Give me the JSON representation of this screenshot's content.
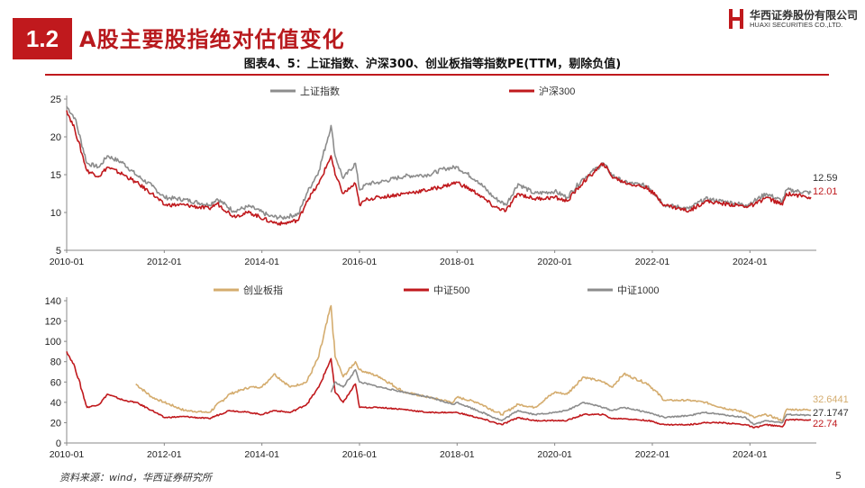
{
  "header": {
    "section_number": "1.2",
    "section_title": "A股主要股指绝对估值变化",
    "logo_cn": "华西证券股份有限公司",
    "logo_en": "HUAXI SECURITIES CO.,LTD."
  },
  "figure_title": "图表4、5：上证指数、沪深300、创业板指等指数PE(TTM，剔除负值)",
  "colors": {
    "red": "#c0191d",
    "grey": "#8c8c8c",
    "tan": "#d4ac6e"
  },
  "chart_data": [
    {
      "type": "line",
      "xlim": [
        "2010-01",
        "2025-04"
      ],
      "ylim": [
        5,
        25
      ],
      "yticks": [
        "5",
        "10",
        "15",
        "20",
        "25"
      ],
      "xticks": [
        "2010-01",
        "2012-01",
        "2014-01",
        "2016-01",
        "2018-01",
        "2020-01",
        "2022-01",
        "2024-01"
      ],
      "legend_position": "top",
      "end_labels": [
        "12.59",
        "12.01"
      ],
      "series": [
        {
          "name": "上证指数",
          "color": "#8c8c8c",
          "points": [
            [
              "2010-01",
              24.0
            ],
            [
              "2010-03",
              22.5
            ],
            [
              "2010-06",
              16.5
            ],
            [
              "2010-09",
              16.0
            ],
            [
              "2010-11",
              17.5
            ],
            [
              "2011-03",
              16.5
            ],
            [
              "2011-06",
              15.0
            ],
            [
              "2011-10",
              13.5
            ],
            [
              "2012-01",
              12.0
            ],
            [
              "2012-06",
              11.7
            ],
            [
              "2012-12",
              11.0
            ],
            [
              "2013-02",
              11.8
            ],
            [
              "2013-06",
              10.2
            ],
            [
              "2013-10",
              10.8
            ],
            [
              "2014-03",
              9.5
            ],
            [
              "2014-06",
              9.3
            ],
            [
              "2014-10",
              9.8
            ],
            [
              "2014-12",
              12.5
            ],
            [
              "2015-03",
              15.5
            ],
            [
              "2015-06",
              21.5
            ],
            [
              "2015-07",
              17.5
            ],
            [
              "2015-09",
              14.5
            ],
            [
              "2015-12",
              16.5
            ],
            [
              "2016-01",
              13.0
            ],
            [
              "2016-03",
              13.8
            ],
            [
              "2016-06",
              14.0
            ],
            [
              "2016-12",
              14.8
            ],
            [
              "2017-06",
              15.0
            ],
            [
              "2017-10",
              15.8
            ],
            [
              "2018-01",
              16.0
            ],
            [
              "2018-06",
              14.2
            ],
            [
              "2018-10",
              12.0
            ],
            [
              "2019-01",
              11.0
            ],
            [
              "2019-04",
              13.8
            ],
            [
              "2019-08",
              12.5
            ],
            [
              "2020-01",
              12.8
            ],
            [
              "2020-04",
              12.0
            ],
            [
              "2020-08",
              14.5
            ],
            [
              "2021-01",
              16.5
            ],
            [
              "2021-03",
              15.0
            ],
            [
              "2021-06",
              14.0
            ],
            [
              "2021-12",
              13.5
            ],
            [
              "2022-04",
              11.0
            ],
            [
              "2022-10",
              10.5
            ],
            [
              "2023-02",
              11.8
            ],
            [
              "2023-06",
              11.5
            ],
            [
              "2023-12",
              11.0
            ],
            [
              "2024-02",
              11.5
            ],
            [
              "2024-05",
              12.5
            ],
            [
              "2024-09",
              11.5
            ],
            [
              "2024-10",
              13.0
            ],
            [
              "2025-04",
              12.59
            ]
          ]
        },
        {
          "name": "沪深300",
          "color": "#c0191d",
          "points": [
            [
              "2010-01",
              23.5
            ],
            [
              "2010-03",
              21.0
            ],
            [
              "2010-06",
              15.5
            ],
            [
              "2010-09",
              14.8
            ],
            [
              "2010-11",
              16.0
            ],
            [
              "2011-03",
              15.0
            ],
            [
              "2011-06",
              14.0
            ],
            [
              "2011-10",
              12.5
            ],
            [
              "2012-01",
              11.0
            ],
            [
              "2012-06",
              11.0
            ],
            [
              "2012-12",
              10.5
            ],
            [
              "2013-02",
              11.2
            ],
            [
              "2013-06",
              9.5
            ],
            [
              "2013-10",
              10.0
            ],
            [
              "2014-03",
              8.8
            ],
            [
              "2014-06",
              8.5
            ],
            [
              "2014-10",
              9.0
            ],
            [
              "2014-12",
              11.5
            ],
            [
              "2015-03",
              13.8
            ],
            [
              "2015-06",
              17.5
            ],
            [
              "2015-07",
              15.0
            ],
            [
              "2015-09",
              12.5
            ],
            [
              "2015-12",
              13.8
            ],
            [
              "2016-01",
              11.0
            ],
            [
              "2016-03",
              11.8
            ],
            [
              "2016-06",
              12.0
            ],
            [
              "2016-12",
              12.5
            ],
            [
              "2017-06",
              13.0
            ],
            [
              "2017-10",
              13.5
            ],
            [
              "2018-01",
              14.0
            ],
            [
              "2018-06",
              12.5
            ],
            [
              "2018-10",
              10.8
            ],
            [
              "2019-01",
              10.2
            ],
            [
              "2019-04",
              12.5
            ],
            [
              "2019-08",
              11.8
            ],
            [
              "2020-01",
              12.0
            ],
            [
              "2020-04",
              11.5
            ],
            [
              "2020-08",
              14.0
            ],
            [
              "2021-01",
              16.5
            ],
            [
              "2021-03",
              14.8
            ],
            [
              "2021-06",
              14.0
            ],
            [
              "2021-12",
              13.2
            ],
            [
              "2022-04",
              11.0
            ],
            [
              "2022-10",
              10.2
            ],
            [
              "2023-02",
              11.5
            ],
            [
              "2023-06",
              11.2
            ],
            [
              "2023-12",
              10.8
            ],
            [
              "2024-02",
              11.0
            ],
            [
              "2024-05",
              12.0
            ],
            [
              "2024-09",
              11.0
            ],
            [
              "2024-10",
              12.5
            ],
            [
              "2025-04",
              12.01
            ]
          ]
        }
      ]
    },
    {
      "type": "line",
      "xlim": [
        "2010-01",
        "2025-04"
      ],
      "ylim": [
        0,
        140
      ],
      "yticks": [
        "0",
        "20",
        "40",
        "60",
        "80",
        "100",
        "120",
        "140"
      ],
      "xticks": [
        "2010-01",
        "2012-01",
        "2014-01",
        "2016-01",
        "2018-01",
        "2020-01",
        "2022-01",
        "2024-01"
      ],
      "legend_position": "top",
      "end_labels": [
        "32.6441",
        "27.1747",
        "22.74"
      ],
      "series": [
        {
          "name": "创业板指",
          "color": "#d4ac6e",
          "points": [
            [
              "2011-06",
              58
            ],
            [
              "2011-10",
              45
            ],
            [
              "2012-01",
              40
            ],
            [
              "2012-06",
              32
            ],
            [
              "2012-12",
              30
            ],
            [
              "2013-05",
              48
            ],
            [
              "2013-10",
              55
            ],
            [
              "2014-01",
              55
            ],
            [
              "2014-04",
              68
            ],
            [
              "2014-08",
              55
            ],
            [
              "2014-12",
              60
            ],
            [
              "2015-03",
              85
            ],
            [
              "2015-06",
              135
            ],
            [
              "2015-07",
              85
            ],
            [
              "2015-09",
              65
            ],
            [
              "2015-12",
              80
            ],
            [
              "2016-01",
              72
            ],
            [
              "2016-06",
              65
            ],
            [
              "2016-12",
              50
            ],
            [
              "2017-06",
              45
            ],
            [
              "2017-12",
              40
            ],
            [
              "2018-01",
              45
            ],
            [
              "2018-06",
              40
            ],
            [
              "2018-12",
              28
            ],
            [
              "2019-04",
              38
            ],
            [
              "2019-08",
              35
            ],
            [
              "2020-01",
              50
            ],
            [
              "2020-04",
              48
            ],
            [
              "2020-08",
              65
            ],
            [
              "2021-01",
              60
            ],
            [
              "2021-03",
              55
            ],
            [
              "2021-06",
              68
            ],
            [
              "2021-12",
              58
            ],
            [
              "2022-04",
              42
            ],
            [
              "2022-10",
              42
            ],
            [
              "2023-02",
              40
            ],
            [
              "2023-06",
              35
            ],
            [
              "2023-12",
              30
            ],
            [
              "2024-02",
              25
            ],
            [
              "2024-05",
              28
            ],
            [
              "2024-09",
              22
            ],
            [
              "2024-10",
              33
            ],
            [
              "2025-04",
              32.6441
            ]
          ]
        },
        {
          "name": "中证500",
          "color": "#c0191d",
          "points": [
            [
              "2010-01",
              90
            ],
            [
              "2010-03",
              75
            ],
            [
              "2010-06",
              35
            ],
            [
              "2010-09",
              38
            ],
            [
              "2010-11",
              48
            ],
            [
              "2011-03",
              42
            ],
            [
              "2011-06",
              40
            ],
            [
              "2011-10",
              32
            ],
            [
              "2012-01",
              25
            ],
            [
              "2012-06",
              26
            ],
            [
              "2012-12",
              24
            ],
            [
              "2013-05",
              32
            ],
            [
              "2013-10",
              30
            ],
            [
              "2014-01",
              28
            ],
            [
              "2014-04",
              32
            ],
            [
              "2014-08",
              30
            ],
            [
              "2014-12",
              38
            ],
            [
              "2015-03",
              55
            ],
            [
              "2015-06",
              83
            ],
            [
              "2015-07",
              50
            ],
            [
              "2015-09",
              40
            ],
            [
              "2015-12",
              58
            ],
            [
              "2016-01",
              35
            ],
            [
              "2016-06",
              35
            ],
            [
              "2016-12",
              33
            ],
            [
              "2017-06",
              30
            ],
            [
              "2017-12",
              30
            ],
            [
              "2018-01",
              30
            ],
            [
              "2018-06",
              25
            ],
            [
              "2018-12",
              18
            ],
            [
              "2019-04",
              25
            ],
            [
              "2019-08",
              22
            ],
            [
              "2020-01",
              22
            ],
            [
              "2020-04",
              22
            ],
            [
              "2020-08",
              28
            ],
            [
              "2021-01",
              28
            ],
            [
              "2021-03",
              24
            ],
            [
              "2021-06",
              24
            ],
            [
              "2021-12",
              22
            ],
            [
              "2022-04",
              18
            ],
            [
              "2022-10",
              18
            ],
            [
              "2023-02",
              20
            ],
            [
              "2023-06",
              20
            ],
            [
              "2023-12",
              18
            ],
            [
              "2024-02",
              15
            ],
            [
              "2024-05",
              18
            ],
            [
              "2024-09",
              16
            ],
            [
              "2024-10",
              23
            ],
            [
              "2025-04",
              22.74
            ]
          ]
        },
        {
          "name": "中证1000",
          "color": "#8c8c8c",
          "points": [
            [
              "2015-06",
              50
            ],
            [
              "2015-07",
              60
            ],
            [
              "2015-09",
              55
            ],
            [
              "2015-12",
              72
            ],
            [
              "2016-01",
              60
            ],
            [
              "2016-06",
              55
            ],
            [
              "2016-12",
              50
            ],
            [
              "2017-06",
              45
            ],
            [
              "2017-12",
              38
            ],
            [
              "2018-01",
              40
            ],
            [
              "2018-06",
              32
            ],
            [
              "2018-12",
              22
            ],
            [
              "2019-04",
              32
            ],
            [
              "2019-08",
              28
            ],
            [
              "2020-01",
              30
            ],
            [
              "2020-04",
              32
            ],
            [
              "2020-08",
              40
            ],
            [
              "2021-01",
              35
            ],
            [
              "2021-03",
              32
            ],
            [
              "2021-06",
              35
            ],
            [
              "2021-12",
              30
            ],
            [
              "2022-04",
              25
            ],
            [
              "2022-10",
              27
            ],
            [
              "2023-02",
              30
            ],
            [
              "2023-06",
              28
            ],
            [
              "2023-12",
              25
            ],
            [
              "2024-02",
              18
            ],
            [
              "2024-05",
              22
            ],
            [
              "2024-09",
              20
            ],
            [
              "2024-10",
              28
            ],
            [
              "2025-04",
              27.1747
            ]
          ]
        }
      ]
    }
  ],
  "footer": {
    "source": "资料来源：wind，华西证券研究所",
    "page": "5"
  }
}
